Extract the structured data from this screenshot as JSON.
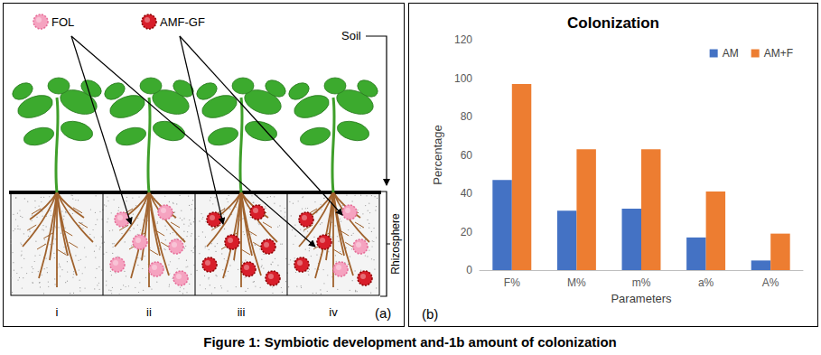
{
  "diagram": {
    "panel_label": "(a)",
    "inocula": [
      "FOL",
      "AMF-GF"
    ],
    "soil_label": "Soil",
    "zone_label": "Rhizosphere",
    "treatments": [
      "i",
      "ii",
      "iii",
      "iv"
    ]
  },
  "chart_data": {
    "type": "bar",
    "panel_label": "(b)",
    "title": "Colonization",
    "x_label": "Parameters",
    "y_label": "Percentage",
    "categories": [
      "F%",
      "M%",
      "m%",
      "a%",
      "A%"
    ],
    "series": [
      {
        "name": "AM",
        "color": "#4472c4",
        "values": [
          47,
          31,
          32,
          17,
          5
        ]
      },
      {
        "name": "AM+F",
        "color": "#ed7d31",
        "values": [
          97,
          63,
          63,
          41,
          19
        ]
      }
    ],
    "ylim": [
      0,
      120
    ],
    "yticks": [
      0,
      20,
      40,
      60,
      80,
      100,
      120
    ],
    "grid": false,
    "legend": "upper right"
  },
  "caption": "Figure 1: Symbiotic development and-1b amount of colonization"
}
